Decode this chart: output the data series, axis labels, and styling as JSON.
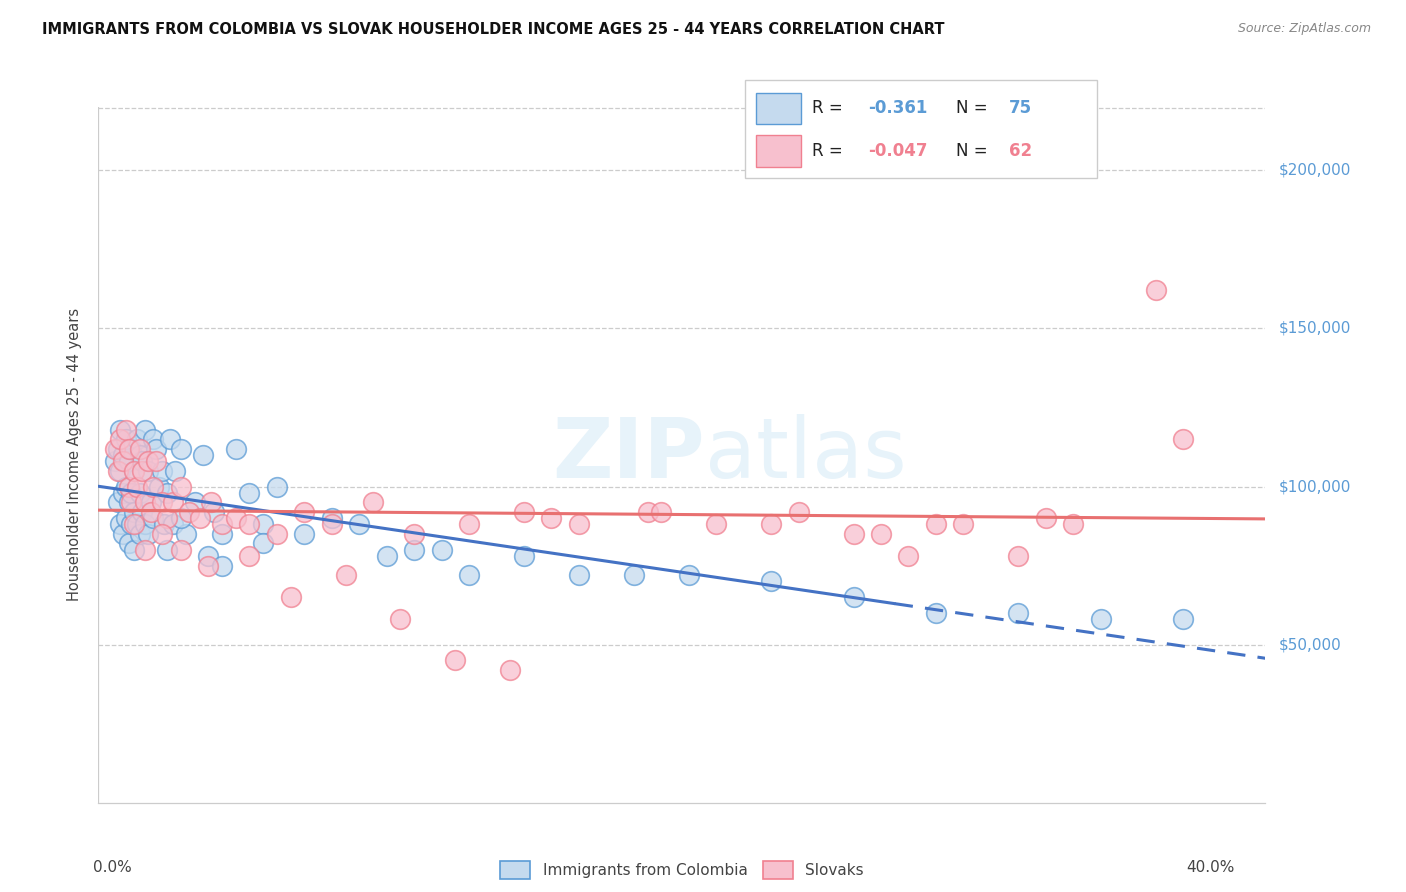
{
  "title": "IMMIGRANTS FROM COLOMBIA VS SLOVAK HOUSEHOLDER INCOME AGES 25 - 44 YEARS CORRELATION CHART",
  "source": "Source: ZipAtlas.com",
  "ylabel": "Householder Income Ages 25 - 44 years",
  "xlabel_ticks": [
    "0.0%",
    "40.0%"
  ],
  "xlabel_vals": [
    0.0,
    0.4
  ],
  "ytick_labels": [
    "$50,000",
    "$100,000",
    "$150,000",
    "$200,000"
  ],
  "ytick_vals": [
    50000,
    100000,
    150000,
    200000
  ],
  "ylim": [
    0,
    220000
  ],
  "xlim": [
    -0.005,
    0.42
  ],
  "colombia_R": "-0.361",
  "colombia_N": "75",
  "slovak_R": "-0.047",
  "slovak_N": "62",
  "colombia_fill": "#c5daee",
  "slovak_fill": "#f7c0ce",
  "colombia_edge": "#5b9bd5",
  "slovak_edge": "#f08090",
  "colombia_line": "#4472c4",
  "slovak_line": "#e87070",
  "watermark_zip": "ZIP",
  "watermark_atlas": "atlas",
  "legend_label1": "Immigrants from Colombia",
  "legend_label2": "Slovaks",
  "colombia_scatter_x": [
    0.001,
    0.002,
    0.002,
    0.003,
    0.003,
    0.003,
    0.004,
    0.004,
    0.004,
    0.005,
    0.005,
    0.005,
    0.006,
    0.006,
    0.006,
    0.007,
    0.007,
    0.007,
    0.008,
    0.008,
    0.008,
    0.009,
    0.009,
    0.01,
    0.01,
    0.01,
    0.011,
    0.011,
    0.012,
    0.012,
    0.013,
    0.013,
    0.014,
    0.015,
    0.015,
    0.016,
    0.017,
    0.018,
    0.019,
    0.02,
    0.021,
    0.022,
    0.023,
    0.025,
    0.027,
    0.03,
    0.033,
    0.037,
    0.04,
    0.045,
    0.05,
    0.055,
    0.06,
    0.07,
    0.08,
    0.09,
    0.1,
    0.11,
    0.12,
    0.13,
    0.15,
    0.17,
    0.19,
    0.21,
    0.24,
    0.27,
    0.3,
    0.33,
    0.36,
    0.39,
    0.02,
    0.025,
    0.035,
    0.04,
    0.055
  ],
  "colombia_scatter_y": [
    108000,
    112000,
    95000,
    118000,
    105000,
    88000,
    110000,
    98000,
    85000,
    115000,
    100000,
    90000,
    108000,
    95000,
    82000,
    112000,
    98000,
    88000,
    105000,
    92000,
    80000,
    115000,
    88000,
    110000,
    98000,
    85000,
    108000,
    92000,
    118000,
    88000,
    105000,
    85000,
    95000,
    115000,
    90000,
    112000,
    100000,
    105000,
    88000,
    98000,
    115000,
    88000,
    105000,
    112000,
    85000,
    95000,
    110000,
    92000,
    85000,
    112000,
    98000,
    88000,
    100000,
    85000,
    90000,
    88000,
    78000,
    80000,
    80000,
    72000,
    78000,
    72000,
    72000,
    72000,
    70000,
    65000,
    60000,
    60000,
    58000,
    58000,
    80000,
    90000,
    78000,
    75000,
    82000
  ],
  "slovak_scatter_x": [
    0.001,
    0.002,
    0.003,
    0.004,
    0.005,
    0.006,
    0.006,
    0.007,
    0.008,
    0.009,
    0.01,
    0.011,
    0.012,
    0.013,
    0.014,
    0.015,
    0.016,
    0.018,
    0.02,
    0.022,
    0.025,
    0.028,
    0.032,
    0.036,
    0.04,
    0.045,
    0.05,
    0.06,
    0.07,
    0.08,
    0.095,
    0.11,
    0.13,
    0.15,
    0.17,
    0.195,
    0.22,
    0.25,
    0.28,
    0.31,
    0.35,
    0.39,
    0.16,
    0.2,
    0.24,
    0.27,
    0.3,
    0.34,
    0.008,
    0.012,
    0.018,
    0.025,
    0.035,
    0.05,
    0.065,
    0.085,
    0.105,
    0.125,
    0.145,
    0.29,
    0.33,
    0.38
  ],
  "slovak_scatter_y": [
    112000,
    105000,
    115000,
    108000,
    118000,
    100000,
    112000,
    95000,
    105000,
    100000,
    112000,
    105000,
    95000,
    108000,
    92000,
    100000,
    108000,
    95000,
    90000,
    95000,
    100000,
    92000,
    90000,
    95000,
    88000,
    90000,
    88000,
    85000,
    92000,
    88000,
    95000,
    85000,
    88000,
    92000,
    88000,
    92000,
    88000,
    92000,
    85000,
    88000,
    88000,
    115000,
    90000,
    92000,
    88000,
    85000,
    88000,
    90000,
    88000,
    80000,
    85000,
    80000,
    75000,
    78000,
    65000,
    72000,
    58000,
    45000,
    42000,
    78000,
    78000,
    162000
  ]
}
